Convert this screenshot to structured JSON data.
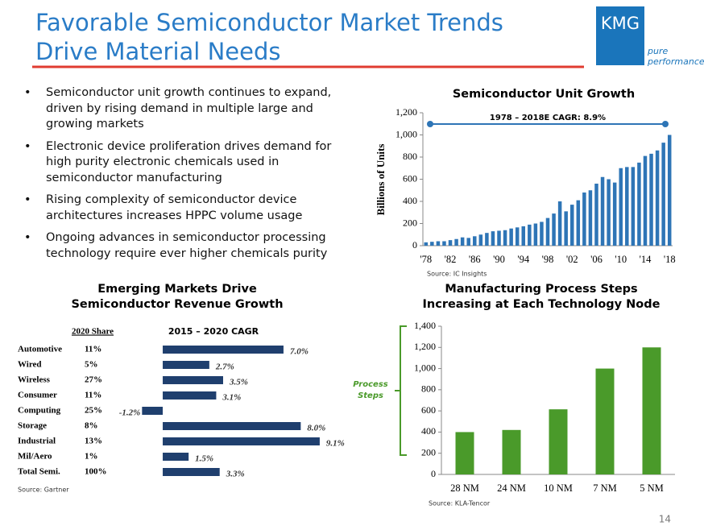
{
  "header": {
    "title": [
      "Favorable Semiconductor Market Trends",
      "Drive Material Needs"
    ]
  },
  "logo": {
    "name": "KMG",
    "tagline": [
      "pure",
      "performance"
    ]
  },
  "bullets": [
    "Semiconductor unit growth continues to expand, driven by rising demand in multiple large and growing markets",
    "Electronic device proliferation drives demand for high purity electronic chemicals used in semiconductor manufacturing",
    "Rising complexity of semiconductor device architectures increases HPPC volume usage",
    "Ongoing advances in semiconductor processing technology require ever higher chemicals purity"
  ],
  "chart_data": [
    {
      "type": "bar",
      "title": "Semiconductor Unit Growth",
      "y_label": "Billions of Units",
      "annotation": "1978 – 2018E CAGR: 8.9%",
      "source": "Source: IC Insights",
      "color": "#2e75b6",
      "categories": [
        "'78",
        null,
        null,
        null,
        "'82",
        null,
        null,
        null,
        "'86",
        null,
        null,
        null,
        "'90",
        null,
        null,
        null,
        "'94",
        null,
        null,
        null,
        "'98",
        null,
        null,
        null,
        "'02",
        null,
        null,
        null,
        "'06",
        null,
        null,
        null,
        "'10",
        null,
        null,
        null,
        "'14",
        null,
        null,
        null,
        "'18"
      ],
      "values": [
        30,
        35,
        40,
        40,
        50,
        60,
        75,
        70,
        85,
        100,
        115,
        130,
        135,
        140,
        155,
        165,
        175,
        190,
        200,
        215,
        250,
        290,
        400,
        310,
        370,
        410,
        480,
        500,
        560,
        620,
        600,
        570,
        700,
        710,
        710,
        750,
        810,
        830,
        860,
        930,
        1000
      ],
      "ylim": [
        0,
        1200
      ],
      "yticks": [
        0,
        200,
        400,
        600,
        800,
        {
          "value": 1000,
          "label": "1,000"
        },
        {
          "value": 1200,
          "label": "1,200"
        }
      ]
    },
    {
      "type": "hbar",
      "title": [
        "Emerging Markets Drive",
        "Semiconductor Revenue Growth"
      ],
      "share_header": "2020 Share",
      "value_header": "2015 – 2020 CAGR",
      "source": "Source: Gartner",
      "color": "#1f3f6e",
      "categories": [
        "Automotive",
        "Wired",
        "Wireless",
        "Consumer",
        "Computing",
        "Storage",
        "Industrial",
        "Mil/Aero",
        "Total Semi."
      ],
      "share_labels": [
        "11%",
        "5%",
        "27%",
        "11%",
        "25%",
        "8%",
        "13%",
        "1%",
        "100%"
      ],
      "values": [
        7.0,
        2.7,
        3.5,
        3.1,
        -1.2,
        8.0,
        9.1,
        1.5,
        3.3
      ],
      "value_labels": [
        "7.0%",
        "2.7%",
        "3.5%",
        "3.1%",
        "-1.2%",
        "8.0%",
        "9.1%",
        "1.5%",
        "3.3%"
      ],
      "xlim": [
        -2,
        10
      ]
    },
    {
      "type": "bar",
      "title": [
        "Manufacturing Process Steps",
        "Increasing at Each Technology Node"
      ],
      "annotation": "Process Steps",
      "source": "Source: KLA-Tencor",
      "color": "#4a9a2a",
      "categories": [
        "28 NM",
        "24 NM",
        "10 NM",
        "7 NM",
        "5 NM"
      ],
      "values": [
        400,
        420,
        615,
        1000,
        1200
      ],
      "ylim": [
        0,
        1400
      ],
      "yticks": [
        0,
        200,
        400,
        600,
        800,
        {
          "value": 1000,
          "label": "1,000"
        },
        {
          "value": 1200,
          "label": "1,200"
        },
        {
          "value": 1400,
          "label": "1,400"
        }
      ]
    }
  ],
  "page_number": "14"
}
